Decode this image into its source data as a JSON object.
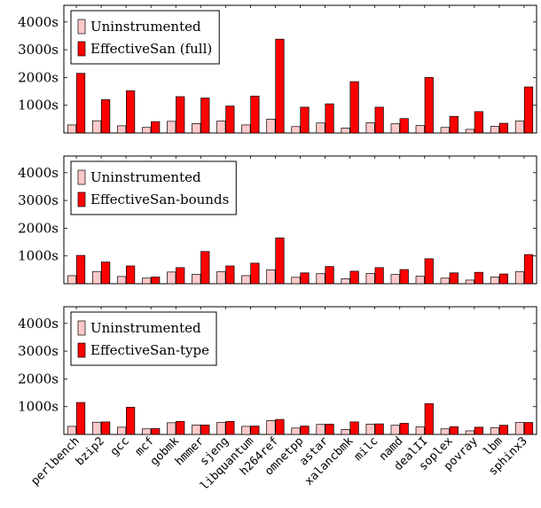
{
  "chart_data": [
    {
      "type": "bar",
      "categories": [
        "perlbench",
        "bzip2",
        "gcc",
        "mcf",
        "gobmk",
        "hmmer",
        "sjeng",
        "libquantum",
        "h264ref",
        "omnetpp",
        "astar",
        "xalancbmk",
        "milc",
        "namd",
        "dealII",
        "soplex",
        "povray",
        "lbm",
        "sphinx3"
      ],
      "series": [
        {
          "name": "Uninstrumented",
          "values": [
            290,
            440,
            260,
            200,
            420,
            340,
            430,
            290,
            500,
            230,
            360,
            180,
            370,
            330,
            270,
            200,
            130,
            240,
            430
          ]
        },
        {
          "name": "EffectiveSan (full)",
          "values": [
            2150,
            1200,
            1520,
            410,
            1310,
            1260,
            970,
            1330,
            3380,
            930,
            1050,
            1850,
            930,
            520,
            2000,
            600,
            770,
            350,
            1660
          ]
        }
      ],
      "yticks": [
        1000,
        2000,
        3000,
        4000
      ],
      "ytick_labels": [
        "1000s",
        "2000s",
        "3000s",
        "4000s"
      ],
      "ylim": [
        0,
        4600
      ],
      "legend_position": "top-left",
      "colors": {
        "Uninstrumented": "#ffc9c9",
        "EffectiveSan (full)": "#ff0000"
      }
    },
    {
      "type": "bar",
      "categories": [
        "perlbench",
        "bzip2",
        "gcc",
        "mcf",
        "gobmk",
        "hmmer",
        "sjeng",
        "libquantum",
        "h264ref",
        "omnetpp",
        "astar",
        "xalancbmk",
        "milc",
        "namd",
        "dealII",
        "soplex",
        "povray",
        "lbm",
        "sphinx3"
      ],
      "series": [
        {
          "name": "Uninstrumented",
          "values": [
            290,
            440,
            260,
            200,
            420,
            340,
            430,
            290,
            500,
            230,
            360,
            180,
            370,
            330,
            270,
            200,
            130,
            240,
            430
          ]
        },
        {
          "name": "EffectiveSan-bounds",
          "values": [
            1020,
            780,
            640,
            240,
            580,
            1160,
            640,
            740,
            1650,
            390,
            620,
            450,
            580,
            510,
            900,
            390,
            410,
            350,
            1050
          ]
        }
      ],
      "yticks": [
        1000,
        2000,
        3000,
        4000
      ],
      "ytick_labels": [
        "1000s",
        "2000s",
        "3000s",
        "4000s"
      ],
      "ylim": [
        0,
        4600
      ],
      "legend_position": "top-left",
      "colors": {
        "Uninstrumented": "#ffc9c9",
        "EffectiveSan-bounds": "#ff0000"
      }
    },
    {
      "type": "bar",
      "categories": [
        "perlbench",
        "bzip2",
        "gcc",
        "mcf",
        "gobmk",
        "hmmer",
        "sjeng",
        "libquantum",
        "h264ref",
        "omnetpp",
        "astar",
        "xalancbmk",
        "milc",
        "namd",
        "dealII",
        "soplex",
        "povray",
        "lbm",
        "sphinx3"
      ],
      "series": [
        {
          "name": "Uninstrumented",
          "values": [
            290,
            440,
            260,
            200,
            420,
            340,
            430,
            290,
            500,
            230,
            360,
            180,
            370,
            330,
            270,
            200,
            130,
            240,
            430
          ]
        },
        {
          "name": "EffectiveSan-type",
          "values": [
            1150,
            450,
            980,
            210,
            470,
            340,
            470,
            300,
            540,
            300,
            370,
            450,
            380,
            400,
            1110,
            280,
            260,
            330,
            430
          ]
        }
      ],
      "yticks": [
        1000,
        2000,
        3000,
        4000
      ],
      "ytick_labels": [
        "1000s",
        "2000s",
        "3000s",
        "4000s"
      ],
      "ylim": [
        0,
        4600
      ],
      "legend_position": "top-left",
      "colors": {
        "Uninstrumented": "#ffc9c9",
        "EffectiveSan-type": "#ff0000"
      }
    }
  ]
}
